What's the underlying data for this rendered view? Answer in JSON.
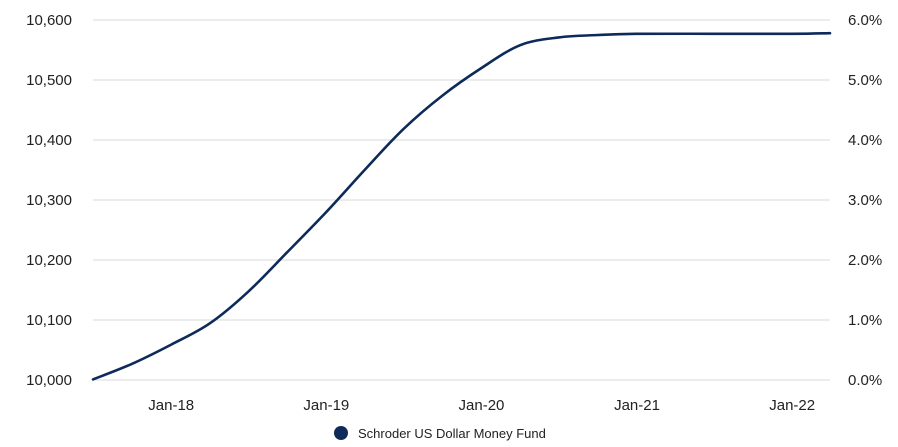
{
  "chart_data": {
    "type": "line",
    "title": "",
    "xlabel": "",
    "ylabel": "",
    "x_tick_labels": [
      "Jan-18",
      "Jan-19",
      "Jan-20",
      "Jan-21",
      "Jan-22"
    ],
    "x_tick_dates": [
      "2018-01-01",
      "2019-01-01",
      "2020-01-01",
      "2021-01-01",
      "2022-01-01"
    ],
    "x_range": [
      "2017-07-01",
      "2022-03-31"
    ],
    "y_left": {
      "range": [
        10000,
        10600
      ],
      "ticks": [
        10000,
        10100,
        10200,
        10300,
        10400,
        10500,
        10600
      ],
      "tick_labels": [
        "10,000",
        "10,100",
        "10,200",
        "10,300",
        "10,400",
        "10,500",
        "10,600"
      ]
    },
    "y_right": {
      "range": [
        0.0,
        6.0
      ],
      "ticks": [
        0.0,
        1.0,
        2.0,
        3.0,
        4.0,
        5.0,
        6.0
      ],
      "tick_labels": [
        "0.0%",
        "1.0%",
        "2.0%",
        "3.0%",
        "4.0%",
        "5.0%",
        "6.0%"
      ]
    },
    "grid": true,
    "legend_position": "bottom-center",
    "series": [
      {
        "name": "Schroder US Dollar Money Fund",
        "color": "#0e2a5a",
        "points": [
          {
            "x": "2017-07-01",
            "y": 10001
          },
          {
            "x": "2017-10-01",
            "y": 10027
          },
          {
            "x": "2018-01-01",
            "y": 10059
          },
          {
            "x": "2018-04-01",
            "y": 10094
          },
          {
            "x": "2018-07-01",
            "y": 10147
          },
          {
            "x": "2018-10-01",
            "y": 10213
          },
          {
            "x": "2019-01-01",
            "y": 10280
          },
          {
            "x": "2019-04-01",
            "y": 10350
          },
          {
            "x": "2019-07-01",
            "y": 10418
          },
          {
            "x": "2019-10-01",
            "y": 10474
          },
          {
            "x": "2020-01-01",
            "y": 10520
          },
          {
            "x": "2020-04-01",
            "y": 10558
          },
          {
            "x": "2020-07-01",
            "y": 10571
          },
          {
            "x": "2020-10-01",
            "y": 10575
          },
          {
            "x": "2021-01-01",
            "y": 10577
          },
          {
            "x": "2021-07-01",
            "y": 10577
          },
          {
            "x": "2022-01-01",
            "y": 10577
          },
          {
            "x": "2022-03-31",
            "y": 10578
          }
        ]
      }
    ]
  }
}
